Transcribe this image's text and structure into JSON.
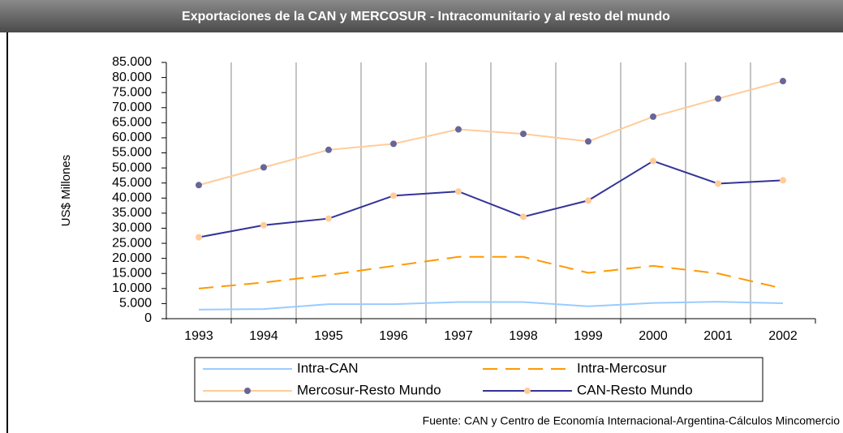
{
  "chart_data": {
    "type": "line",
    "title": "Exportaciones de la CAN y MERCOSUR - Intracomunitario y al resto del  mundo",
    "y_label": "US$ Millones",
    "source": "Fuente: CAN y Centro de Economía Internacional-Argentina-Cálculos Mincomercio",
    "categories": [
      "1993",
      "1994",
      "1995",
      "1996",
      "1997",
      "1998",
      "1999",
      "2000",
      "2001",
      "2002"
    ],
    "series": [
      {
        "name": "Intra-CAN",
        "color": "#99ccff",
        "values": [
          3000,
          3200,
          4800,
          4800,
          5500,
          5500,
          4100,
          5200,
          5600,
          5100
        ]
      },
      {
        "name": "Intra-Mercosur",
        "color": "#ff9900",
        "dashed": true,
        "values": [
          10000,
          12000,
          14500,
          17500,
          20500,
          20500,
          15200,
          17500,
          15000,
          10000
        ]
      },
      {
        "name": "Mercosur-Resto Mundo",
        "color": "#ffcc99",
        "marker_color": "#666699",
        "values": [
          44300,
          50200,
          56000,
          58000,
          62800,
          61300,
          58800,
          67000,
          73000,
          78800
        ]
      },
      {
        "name": "CAN-Resto Mundo",
        "color": "#333399",
        "marker_color": "#ffcc99",
        "values": [
          27000,
          31000,
          33200,
          40800,
          42200,
          33800,
          39200,
          52300,
          44800,
          45900
        ]
      }
    ],
    "ylim": [
      0,
      85000
    ],
    "yticks": [
      0,
      {
        "value": 5000,
        "label": "5.000"
      },
      {
        "value": 10000,
        "label": "10.000"
      },
      {
        "value": 15000,
        "label": "15.000"
      },
      {
        "value": 20000,
        "label": "20.000"
      },
      {
        "value": 25000,
        "label": "25.000"
      },
      {
        "value": 30000,
        "label": "30.000"
      },
      {
        "value": 35000,
        "label": "35.000"
      },
      {
        "value": 40000,
        "label": "40.000"
      },
      {
        "value": 45000,
        "label": "45.000"
      },
      {
        "value": 50000,
        "label": "50.000"
      },
      {
        "value": 55000,
        "label": "55.000"
      },
      {
        "value": 60000,
        "label": "60.000"
      },
      {
        "value": 65000,
        "label": "65.000"
      },
      {
        "value": 70000,
        "label": "70.000"
      },
      {
        "value": 75000,
        "label": "75.000"
      },
      {
        "value": 80000,
        "label": "80.000"
      },
      {
        "value": 85000,
        "label": "85.000"
      }
    ],
    "grid": true
  }
}
